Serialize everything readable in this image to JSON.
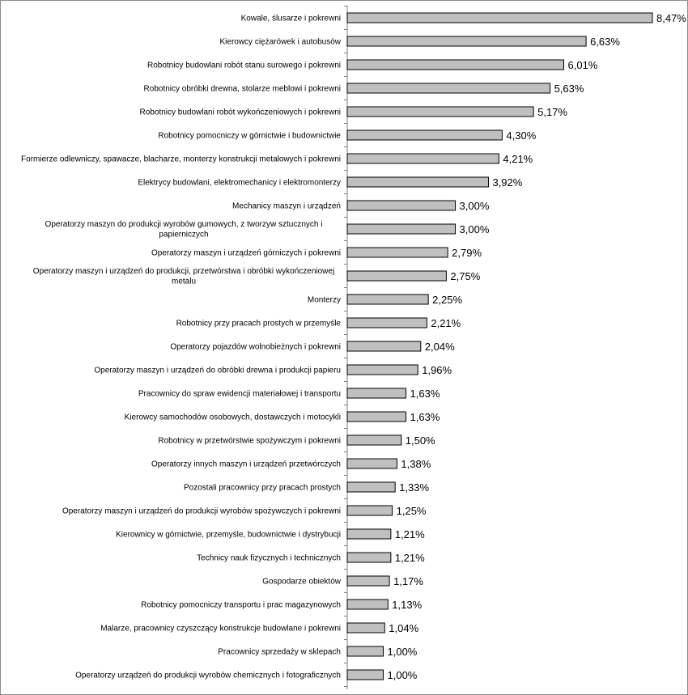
{
  "chart_data": {
    "type": "bar",
    "orientation": "horizontal",
    "bar_color": "#c0c0c0",
    "bar_border_color": "#000000",
    "grid": false,
    "xlim": [
      0,
      8.47
    ],
    "categories": [
      [
        "Kowale, ślusarze i pokrewni"
      ],
      [
        "Kierowcy ciężarówek i autobusów"
      ],
      [
        "Robotnicy budowlani robót stanu surowego i pokrewni"
      ],
      [
        "Robotnicy obróbki drewna, stolarze meblowi i pokrewni"
      ],
      [
        "Robotnicy budowlani robót wykończeniowych i pokrewni"
      ],
      [
        "Robotnicy pomocniczy w górnictwie i budownictwie"
      ],
      [
        "Formierze odlewniczy, spawacze, blacharze, monterzy konstrukcji metalowych i pokrewni"
      ],
      [
        "Elektrycy budowlani, elektromechanicy i elektromonterzy"
      ],
      [
        "Mechanicy maszyn i urządzeń"
      ],
      [
        "Operatorzy maszyn do produkcji wyrobów gumowych, z tworzyw sztucznych i",
        "papierniczych"
      ],
      [
        "Operatorzy maszyn i urządzeń górniczych i pokrewni"
      ],
      [
        "Operatorzy maszyn i urządzeń do produkcji, przetwórstwa i obróbki wykończeniowej",
        "metalu"
      ],
      [
        "Monterzy"
      ],
      [
        "Robotnicy przy pracach prostych w przemyśle"
      ],
      [
        "Operatorzy pojazdów wolnobieżnych i pokrewni"
      ],
      [
        "Operatorzy maszyn i urządzeń do obróbki drewna i produkcji papieru"
      ],
      [
        "Pracownicy do spraw ewidencji materiałowej i transportu"
      ],
      [
        "Kierowcy samochodów osobowych, dostawczych i motocykli"
      ],
      [
        "Robotnicy w przetwórstwie spożywczym i pokrewni"
      ],
      [
        "Operatorzy innych maszyn i urządzeń przetwórczych"
      ],
      [
        "Pozostali pracownicy przy pracach prostych"
      ],
      [
        "Operatorzy maszyn i urządzeń do produkcji wyrobów spożywczych i pokrewni"
      ],
      [
        "Kierownicy w górnictwie, przemyśle, budownictwie i dystrybucji"
      ],
      [
        "Technicy nauk fizycznych i technicznych"
      ],
      [
        "Gospodarze obiektów"
      ],
      [
        "Robotnicy pomocniczy transportu i prac magazynowych"
      ],
      [
        "Malarze, pracownicy czyszczący konstrukcje budowlane i pokrewni"
      ],
      [
        "Pracownicy sprzedaży w sklepach"
      ],
      [
        "Operatorzy urządzeń do produkcji wyrobów chemicznych i fotograficznych"
      ]
    ],
    "values": [
      8.47,
      6.63,
      6.01,
      5.63,
      5.17,
      4.3,
      4.21,
      3.92,
      3.0,
      3.0,
      2.79,
      2.75,
      2.25,
      2.21,
      2.04,
      1.96,
      1.63,
      1.63,
      1.5,
      1.38,
      1.33,
      1.25,
      1.21,
      1.21,
      1.17,
      1.13,
      1.04,
      1.0,
      1.0
    ],
    "value_labels": [
      "8,47%",
      "6,63%",
      "6,01%",
      "5,63%",
      "5,17%",
      "4,30%",
      "4,21%",
      "3,92%",
      "3,00%",
      "3,00%",
      "2,79%",
      "2,75%",
      "2,25%",
      "2,21%",
      "2,04%",
      "1,96%",
      "1,63%",
      "1,63%",
      "1,50%",
      "1,38%",
      "1,33%",
      "1,25%",
      "1,21%",
      "1,21%",
      "1,17%",
      "1,13%",
      "1,04%",
      "1,00%",
      "1,00%"
    ]
  }
}
